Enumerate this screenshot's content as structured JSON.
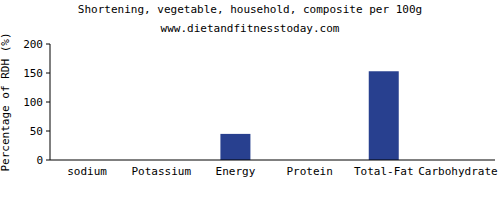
{
  "chart_data": {
    "type": "bar",
    "title": "Shortening, vegetable, household, composite per 100g",
    "subtitle": "www.dietandfitnesstoday.com",
    "ylabel": "Percentage of RDH (%)",
    "categories": [
      "sodium",
      "Potassium",
      "Energy",
      "Protein",
      "Total-Fat",
      "Carbohydrate"
    ],
    "values": [
      0,
      0,
      45,
      0,
      153,
      0
    ],
    "color": "#28408f",
    "ylim": [
      0,
      200
    ],
    "yticks": [
      0,
      50,
      100,
      150,
      200
    ],
    "grid": false
  }
}
